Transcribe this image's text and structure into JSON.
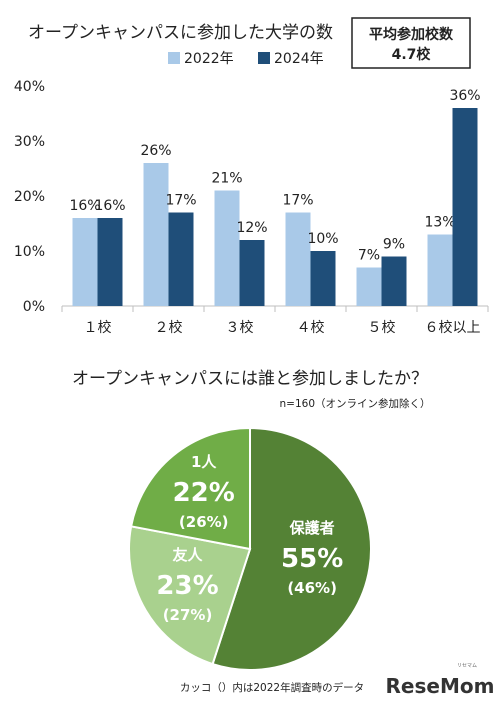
{
  "chart_data": [
    {
      "type": "bar",
      "title": "オープンキャンパスに参加した大学の数",
      "categories": [
        "１校",
        "２校",
        "３校",
        "４校",
        "５校",
        "６校以上"
      ],
      "series": [
        {
          "name": "2022年",
          "color": "#a9c9e8",
          "values": [
            16,
            26,
            21,
            17,
            7,
            13
          ]
        },
        {
          "name": "2024年",
          "color": "#1f4e79",
          "values": [
            16,
            17,
            12,
            10,
            9,
            36
          ]
        }
      ],
      "ylim": [
        0,
        40
      ],
      "yticks": [
        "0%",
        "10%",
        "20%",
        "30%",
        "40%"
      ],
      "ytick_values": [
        0,
        10,
        20,
        30,
        40
      ],
      "value_suffix": "%",
      "legend_position": "top-center",
      "annotation_box": {
        "line1": "平均参加校数",
        "line2": "4.7校"
      },
      "grid": false
    },
    {
      "type": "pie",
      "title": "オープンキャンパスには誰と参加しましたか？",
      "subtitle": "n=160（オンライン参加除く）",
      "slices": [
        {
          "name": "保護者",
          "value": 55,
          "label": "55%",
          "prev_label": "(46%)",
          "color": "#548235"
        },
        {
          "name": "友人",
          "value": 23,
          "label": "23%",
          "prev_label": "(27%)",
          "color": "#a9d18e"
        },
        {
          "name": "1人",
          "value": 22,
          "label": "22%",
          "prev_label": "(26%)",
          "color": "#70ad47"
        }
      ],
      "footnote": "カッコ（）内は2022年調査時のデータ"
    }
  ],
  "brand": {
    "name": "ReseMom",
    "ruby": "リセマム"
  }
}
